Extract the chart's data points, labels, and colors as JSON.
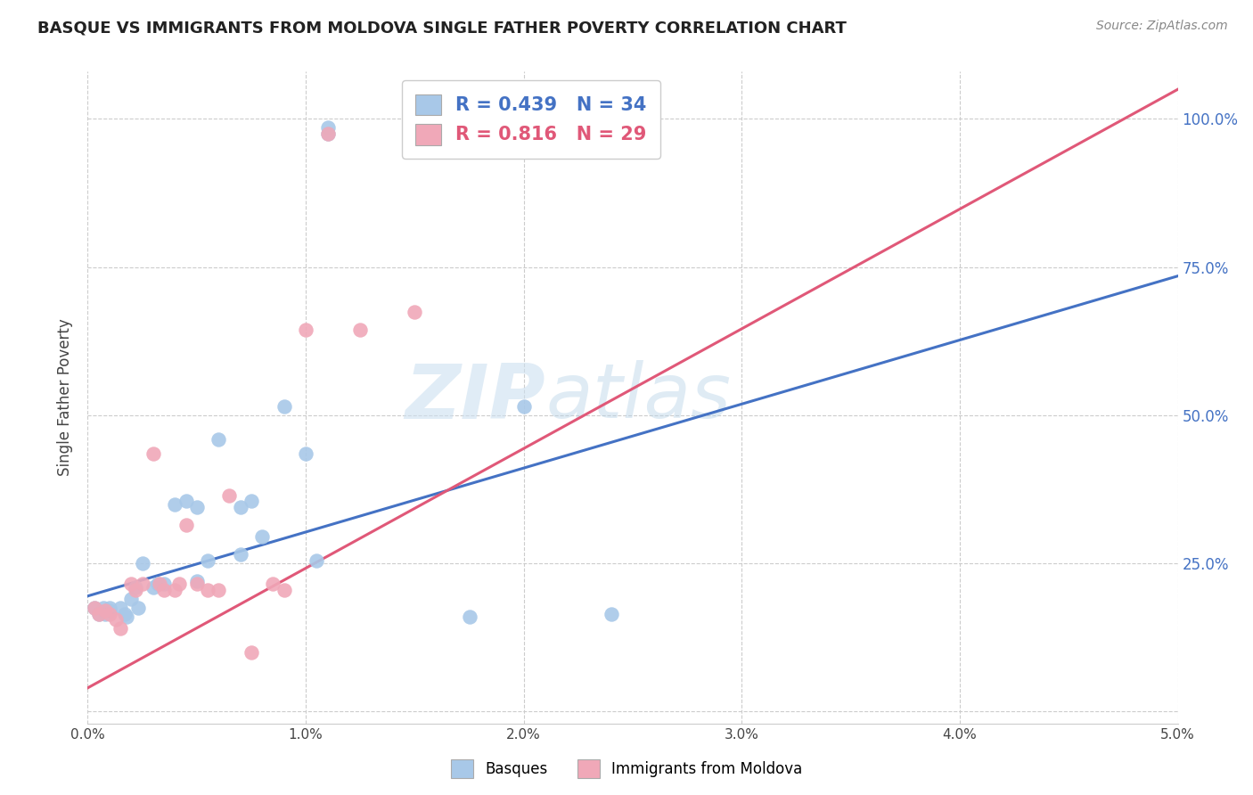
{
  "title": "BASQUE VS IMMIGRANTS FROM MOLDOVA SINGLE FATHER POVERTY CORRELATION CHART",
  "source": "Source: ZipAtlas.com",
  "ylabel": "Single Father Poverty",
  "legend_label1": "Basques",
  "legend_label2": "Immigrants from Moldova",
  "R1": 0.439,
  "N1": 34,
  "R2": 0.816,
  "N2": 29,
  "color_blue": "#a8c8e8",
  "color_pink": "#f0a8b8",
  "line_blue": "#4472c4",
  "line_pink": "#e05878",
  "watermark_zip": "ZIP",
  "watermark_atlas": "atlas",
  "xlim": [
    0.0,
    0.05
  ],
  "ylim": [
    -0.02,
    1.08
  ],
  "xticks": [
    0.0,
    0.01,
    0.02,
    0.03,
    0.04,
    0.05
  ],
  "xtick_labels": [
    "0.0%",
    "1.0%",
    "2.0%",
    "3.0%",
    "4.0%",
    "5.0%"
  ],
  "yticks": [
    0.0,
    0.25,
    0.5,
    0.75,
    1.0
  ],
  "ytick_labels": [
    "",
    "25.0%",
    "50.0%",
    "75.0%",
    "100.0%"
  ],
  "blue_points": [
    [
      0.0003,
      0.175
    ],
    [
      0.0005,
      0.165
    ],
    [
      0.0007,
      0.175
    ],
    [
      0.0008,
      0.165
    ],
    [
      0.001,
      0.175
    ],
    [
      0.001,
      0.17
    ],
    [
      0.0015,
      0.175
    ],
    [
      0.0017,
      0.165
    ],
    [
      0.0018,
      0.16
    ],
    [
      0.002,
      0.19
    ],
    [
      0.0022,
      0.21
    ],
    [
      0.0023,
      0.175
    ],
    [
      0.0025,
      0.25
    ],
    [
      0.003,
      0.21
    ],
    [
      0.0032,
      0.215
    ],
    [
      0.0035,
      0.215
    ],
    [
      0.004,
      0.35
    ],
    [
      0.0045,
      0.355
    ],
    [
      0.005,
      0.345
    ],
    [
      0.005,
      0.22
    ],
    [
      0.0055,
      0.255
    ],
    [
      0.006,
      0.46
    ],
    [
      0.007,
      0.345
    ],
    [
      0.007,
      0.265
    ],
    [
      0.0075,
      0.355
    ],
    [
      0.008,
      0.295
    ],
    [
      0.009,
      0.515
    ],
    [
      0.01,
      0.435
    ],
    [
      0.0105,
      0.255
    ],
    [
      0.011,
      0.975
    ],
    [
      0.011,
      0.985
    ],
    [
      0.0175,
      0.16
    ],
    [
      0.02,
      0.515
    ],
    [
      0.024,
      0.165
    ]
  ],
  "pink_points": [
    [
      0.0003,
      0.175
    ],
    [
      0.0005,
      0.165
    ],
    [
      0.0008,
      0.17
    ],
    [
      0.001,
      0.165
    ],
    [
      0.0013,
      0.155
    ],
    [
      0.0015,
      0.14
    ],
    [
      0.002,
      0.215
    ],
    [
      0.0022,
      0.205
    ],
    [
      0.0025,
      0.215
    ],
    [
      0.003,
      0.435
    ],
    [
      0.0033,
      0.215
    ],
    [
      0.0035,
      0.205
    ],
    [
      0.004,
      0.205
    ],
    [
      0.0042,
      0.215
    ],
    [
      0.0045,
      0.315
    ],
    [
      0.005,
      0.215
    ],
    [
      0.0055,
      0.205
    ],
    [
      0.006,
      0.205
    ],
    [
      0.0065,
      0.365
    ],
    [
      0.0075,
      0.1
    ],
    [
      0.0085,
      0.215
    ],
    [
      0.009,
      0.205
    ],
    [
      0.01,
      0.645
    ],
    [
      0.011,
      0.975
    ],
    [
      0.0125,
      0.645
    ],
    [
      0.015,
      0.675
    ],
    [
      0.016,
      0.955
    ],
    [
      0.019,
      0.955
    ],
    [
      0.022,
      0.975
    ]
  ],
  "blue_line": [
    [
      0.0,
      0.195
    ],
    [
      0.05,
      0.735
    ]
  ],
  "pink_line": [
    [
      0.0,
      0.04
    ],
    [
      0.05,
      1.05
    ]
  ]
}
